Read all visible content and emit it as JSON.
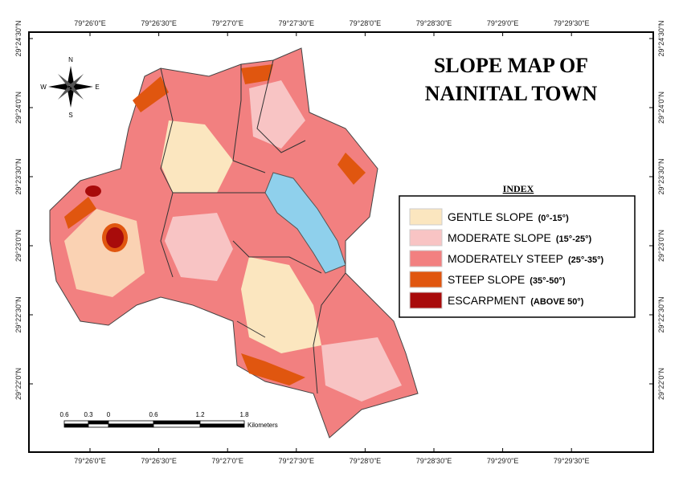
{
  "title": [
    "SLOPE MAP OF",
    "NAINITAL TOWN"
  ],
  "compass": {
    "north": "N",
    "south": "S",
    "east": "E",
    "west": "W"
  },
  "legend": {
    "title": "INDEX",
    "items": [
      {
        "label": "GENTLE SLOPE",
        "range": "(0°-15°)",
        "color": "#fbe6bf"
      },
      {
        "label": "MODERATE SLOPE",
        "range": "(15°-25°)",
        "color": "#f8c4c4"
      },
      {
        "label": "MODERATELY STEEP",
        "range": "(25°-35°)",
        "color": "#f28080"
      },
      {
        "label": "STEEP SLOPE",
        "range": "(35°-50°)",
        "color": "#e0560f"
      },
      {
        "label": "ESCARPMENT",
        "range": "(ABOVE 50°)",
        "color": "#a80b0b"
      }
    ]
  },
  "longitudes": [
    "79°26'0\"E",
    "79°26'30\"E",
    "79°27'0\"E",
    "79°27'30\"E",
    "79°28'0\"E",
    "79°28'30\"E",
    "79°29'0\"E",
    "79°29'30\"E"
  ],
  "latitudes": [
    "29°24'30\"N",
    "29°24'0\"N",
    "29°23'30\"N",
    "29°23'0\"N",
    "29°22'30\"N",
    "29°22'0\"N"
  ],
  "scale_bar": {
    "labels": [
      "0.6",
      "0.3",
      "0",
      "0.6",
      "1.2",
      "1.8"
    ],
    "unit": "Kilometers"
  }
}
